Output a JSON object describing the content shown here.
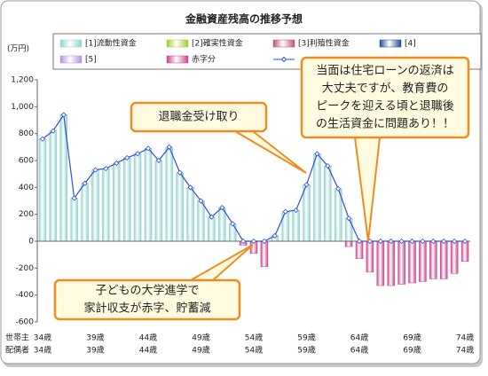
{
  "chart_data": {
    "type": "bar",
    "title": "金融資産残高の推移予想",
    "y_unit": "(万円)",
    "x_row_labels": [
      "世帯主",
      "配偶者"
    ],
    "categories": [
      "34歳",
      null,
      null,
      null,
      null,
      "39歳",
      null,
      null,
      null,
      null,
      "44歳",
      null,
      null,
      null,
      null,
      "49歳",
      null,
      null,
      null,
      null,
      "54歳",
      null,
      null,
      null,
      null,
      "59歳",
      null,
      null,
      null,
      null,
      "64歳",
      null,
      null,
      null,
      null,
      "69歳",
      null,
      null,
      null,
      null,
      "74歳"
    ],
    "categories2": [
      "34歳",
      null,
      null,
      null,
      null,
      "39歳",
      null,
      null,
      null,
      null,
      "44歳",
      null,
      null,
      null,
      null,
      "49歳",
      null,
      null,
      null,
      null,
      "54歳",
      null,
      null,
      null,
      null,
      "59歳",
      null,
      null,
      null,
      null,
      "64歳",
      null,
      null,
      null,
      null,
      "69歳",
      null,
      null,
      null,
      null,
      "74歳"
    ],
    "ylim": [
      -600,
      1200
    ],
    "yticks": [
      -600,
      -400,
      -200,
      0,
      200,
      400,
      600,
      800,
      {
        "value": 1000,
        "label": "1,000"
      },
      {
        "value": 1200,
        "label": "1,200"
      }
    ],
    "series": [
      {
        "name": "[1]流動性資金",
        "color": "#8fd3cf",
        "values": [
          760,
          820,
          940,
          320,
          430,
          530,
          540,
          580,
          620,
          650,
          690,
          600,
          700,
          510,
          400,
          300,
          180,
          250,
          130,
          0,
          0,
          0,
          40,
          220,
          230,
          420,
          650,
          560,
          390,
          170,
          0,
          0,
          0,
          0,
          0,
          0,
          0,
          0,
          0,
          0,
          0
        ]
      },
      {
        "name": "[2]確実性資金",
        "color": "#9acd32"
      },
      {
        "name": "[3]利殖性資金",
        "color": "#c0506a"
      },
      {
        "name": "[4]",
        "color": "#1f4e8c"
      },
      {
        "name": "[5]",
        "color": "#b090e0"
      },
      {
        "name": "赤字分",
        "color": "#c8428a",
        "values": [
          0,
          0,
          0,
          0,
          0,
          0,
          0,
          0,
          0,
          0,
          0,
          0,
          0,
          0,
          0,
          0,
          0,
          0,
          0,
          -30,
          -90,
          -190,
          0,
          0,
          0,
          0,
          0,
          0,
          0,
          -40,
          -130,
          -230,
          -330,
          -330,
          -320,
          -310,
          -300,
          -280,
          -280,
          -240,
          -150
        ]
      },
      {
        "kind": "line",
        "color": "#2f4fd8",
        "values": [
          760,
          820,
          940,
          320,
          430,
          530,
          540,
          580,
          620,
          650,
          690,
          600,
          700,
          510,
          400,
          300,
          180,
          250,
          130,
          0,
          0,
          0,
          40,
          220,
          230,
          420,
          650,
          560,
          390,
          170,
          0,
          0,
          0,
          0,
          0,
          0,
          0,
          0,
          0,
          0,
          0
        ]
      }
    ],
    "annotations": [
      {
        "lines": [
          "退職金受け取り"
        ]
      },
      {
        "lines": [
          "当面は住宅ローンの返済は",
          "大丈夫ですが、教育費の",
          "ピークを迎える頃と退職後",
          "の生活資金に問題あり！！"
        ]
      },
      {
        "lines": [
          "子どもの大学進学で",
          "家計収支が赤字、貯蓄減"
        ]
      }
    ]
  }
}
